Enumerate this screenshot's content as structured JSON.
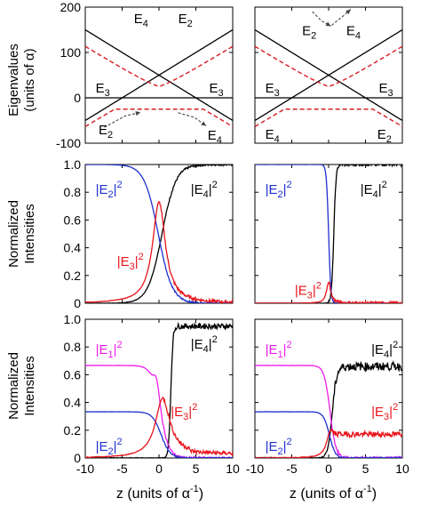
{
  "figure": {
    "xlabel_left": "z (units of α",
    "xlabel_right": "z (units of α",
    "xlabel_sup": "-1",
    "xlabel_close": ")",
    "row_labels": [
      [
        "Eigenvalues",
        "(units of α)"
      ],
      [
        "Normalized",
        "Intensities"
      ],
      [
        "Normalized",
        "Intensities"
      ]
    ]
  },
  "colors": {
    "axis": "#000000",
    "black": "#000000",
    "red": "#e8141b",
    "blue": "#1f2fd0",
    "magenta": "#ee1cee",
    "dashed_red": "#d81f26",
    "arrow": "#444444"
  },
  "chart_data": [
    {
      "id": "top-left",
      "type": "line",
      "xlim": [
        -10,
        10
      ],
      "ylim": [
        -100,
        200
      ],
      "xticks": [
        -10,
        -5,
        0,
        5,
        10
      ],
      "yticks": [
        -100,
        0,
        100,
        200
      ],
      "ytick_labels": [
        "-100",
        "0",
        "100",
        "200"
      ],
      "xtick_labels": [],
      "show_ytick_labels": true,
      "series": [
        {
          "kind": "linear",
          "slope": 10,
          "intercept": 50,
          "style": "solid",
          "color": "black"
        },
        {
          "kind": "linear",
          "slope": -10,
          "intercept": 50,
          "style": "solid",
          "color": "black"
        },
        {
          "kind": "constant",
          "value": 0,
          "style": "solid",
          "color": "black"
        },
        {
          "kind": "repel-upper",
          "style": "dashed",
          "color": "dashed_red"
        },
        {
          "kind": "repel-lower",
          "style": "dashed",
          "color": "dashed_red"
        }
      ],
      "labels": [
        {
          "t": "E",
          "s": "4",
          "x": -3.4,
          "y": 165
        },
        {
          "t": "E",
          "s": "2",
          "x": 2.6,
          "y": 165
        },
        {
          "t": "E",
          "s": "3",
          "x": -8.6,
          "y": 12
        },
        {
          "t": "E",
          "s": "3",
          "x": 6.8,
          "y": 12
        },
        {
          "t": "E",
          "s": "2",
          "x": -8.2,
          "y": -80
        },
        {
          "t": "E",
          "s": "4",
          "x": 6.6,
          "y": -92
        }
      ],
      "arrows": [
        {
          "path": [
            [
              -7.4,
              -65
            ],
            [
              -4.6,
              -40
            ],
            [
              -2.5,
              -32
            ]
          ]
        },
        {
          "path": [
            [
              2.6,
              -33
            ],
            [
              4.8,
              -43
            ],
            [
              6.4,
              -62
            ]
          ]
        }
      ]
    },
    {
      "id": "top-right",
      "type": "line",
      "xlim": [
        -10,
        10
      ],
      "ylim": [
        -100,
        200
      ],
      "xticks": [
        -10,
        -5,
        0,
        5,
        10
      ],
      "yticks": [
        -100,
        0,
        100,
        200
      ],
      "ytick_labels": [],
      "xtick_labels": [],
      "show_ytick_labels": false,
      "series": [
        {
          "kind": "linear",
          "slope": 10,
          "intercept": 50,
          "style": "solid",
          "color": "black"
        },
        {
          "kind": "linear",
          "slope": -10,
          "intercept": 50,
          "style": "solid",
          "color": "black"
        },
        {
          "kind": "constant",
          "value": 0,
          "style": "solid",
          "color": "black"
        },
        {
          "kind": "repel-upper",
          "style": "dashed",
          "color": "dashed_red"
        },
        {
          "kind": "repel-lower",
          "style": "dashed",
          "color": "dashed_red"
        }
      ],
      "labels": [
        {
          "t": "E",
          "s": "2",
          "x": -3.6,
          "y": 138
        },
        {
          "t": "E",
          "s": "4",
          "x": 2.4,
          "y": 138
        },
        {
          "t": "E",
          "s": "3",
          "x": -8.6,
          "y": 12
        },
        {
          "t": "E",
          "s": "3",
          "x": 6.8,
          "y": 12
        },
        {
          "t": "E",
          "s": "4",
          "x": -8.6,
          "y": -90
        },
        {
          "t": "E",
          "s": "2",
          "x": 6.6,
          "y": -90
        }
      ],
      "arrows": [
        {
          "path": [
            [
              -2.2,
              190
            ],
            [
              -1.0,
              170
            ],
            [
              0.3,
              158
            ]
          ]
        },
        {
          "path": [
            [
              0.4,
              160
            ],
            [
              1.8,
              178
            ],
            [
              3.0,
              195
            ]
          ]
        }
      ]
    },
    {
      "id": "mid-left",
      "type": "line",
      "xlim": [
        -10,
        10
      ],
      "ylim": [
        0,
        1.0
      ],
      "xticks": [
        -10,
        -5,
        0,
        5,
        10
      ],
      "yticks": [
        0,
        0.2,
        0.4,
        0.6,
        0.8,
        1.0
      ],
      "ytick_labels": [
        "0",
        "0.2",
        "0.4",
        "0.6",
        "0.8",
        "1.0"
      ],
      "xtick_labels": [],
      "show_ytick_labels": true,
      "series": [
        {
          "kind": "sigmoid-up",
          "x0": 0.0,
          "w": 0.95,
          "amp": 1.0,
          "color": "black",
          "noise": 0.008,
          "lag": 0.4
        },
        {
          "kind": "sigmoid-down",
          "x0": -0.1,
          "w": 0.95,
          "amp": 1.0,
          "color": "blue",
          "noise": 0.006
        },
        {
          "kind": "lorentz",
          "x0": 0.0,
          "w": 1.05,
          "amp": 0.73,
          "color": "red",
          "noise": 0.012
        }
      ],
      "labels": [
        {
          "t": "|E",
          "s": "2",
          "tail": "|",
          "sup": "2",
          "x": -8.6,
          "y": 0.79,
          "color": "blue"
        },
        {
          "t": "|E",
          "s": "4",
          "tail": "|",
          "sup": "2",
          "x": 4.3,
          "y": 0.79,
          "color": "black"
        },
        {
          "t": "|E",
          "s": "3",
          "tail": "|",
          "sup": "2",
          "x": -5.7,
          "y": 0.27,
          "color": "red"
        }
      ]
    },
    {
      "id": "mid-right",
      "type": "line",
      "xlim": [
        -10,
        10
      ],
      "ylim": [
        0,
        1.0
      ],
      "xticks": [
        -10,
        -5,
        0,
        5,
        10
      ],
      "yticks": [
        0,
        0.2,
        0.4,
        0.6,
        0.8,
        1.0
      ],
      "ytick_labels": [],
      "xtick_labels": [],
      "show_ytick_labels": false,
      "series": [
        {
          "kind": "sigmoid-up",
          "x0": 0.1,
          "w": 0.15,
          "amp": 1.0,
          "color": "black",
          "noise": 0.01,
          "lag": 0.6
        },
        {
          "kind": "sigmoid-down",
          "x0": 0.0,
          "w": 0.15,
          "amp": 1.0,
          "color": "blue",
          "noise": 0.004
        },
        {
          "kind": "lorentz",
          "x0": 0.0,
          "w": 0.35,
          "amp": 0.15,
          "color": "red",
          "noise": 0.012
        }
      ],
      "labels": [
        {
          "t": "|E",
          "s": "2",
          "tail": "|",
          "sup": "2",
          "x": -8.6,
          "y": 0.79,
          "color": "blue"
        },
        {
          "t": "|E",
          "s": "4",
          "tail": "|",
          "sup": "2",
          "x": 4.3,
          "y": 0.79,
          "color": "black"
        },
        {
          "t": "|E",
          "s": "3",
          "tail": "|",
          "sup": "2",
          "x": -4.6,
          "y": 0.06,
          "color": "red"
        }
      ]
    },
    {
      "id": "bot-left",
      "type": "line",
      "xlim": [
        -10,
        10
      ],
      "ylim": [
        0,
        1.0
      ],
      "xticks": [
        -10,
        -5,
        0,
        5,
        10
      ],
      "yticks": [
        0,
        0.2,
        0.4,
        0.6,
        0.8,
        1.0
      ],
      "ytick_labels": [
        "0",
        "0.2",
        "0.4",
        "0.6",
        "0.8",
        "1.0"
      ],
      "xtick_labels": [
        "-10",
        "-5",
        "0",
        "5",
        "10"
      ],
      "show_ytick_labels": true,
      "series": [
        {
          "kind": "step-up",
          "x0": 1.6,
          "w": 0.15,
          "amp": 0.95,
          "color": "black",
          "noise": 0.02
        },
        {
          "kind": "sigmoid-down",
          "x0": 0.2,
          "w": 0.6,
          "amp": 0.667,
          "color": "magenta",
          "noise": 0.008,
          "bump": 0.1
        },
        {
          "kind": "sigmoid-down",
          "x0": 0.3,
          "w": 0.6,
          "amp": 0.333,
          "color": "blue",
          "noise": 0.005
        },
        {
          "kind": "lorentz-floor",
          "x0": 0.5,
          "w": 1.2,
          "amp": 0.43,
          "floor": 0.03,
          "color": "red",
          "noise": 0.015
        }
      ],
      "labels": [
        {
          "t": "|E",
          "s": "1",
          "tail": "|",
          "sup": "2",
          "x": -8.6,
          "y": 0.75,
          "color": "magenta"
        },
        {
          "t": "|E",
          "s": "4",
          "tail": "|",
          "sup": "2",
          "x": 4.3,
          "y": 0.79,
          "color": "black"
        },
        {
          "t": "|E",
          "s": "3",
          "tail": "|",
          "sup": "2",
          "x": 1.6,
          "y": 0.3,
          "color": "red"
        },
        {
          "t": "|E",
          "s": "2",
          "tail": "|",
          "sup": "2",
          "x": -8.6,
          "y": 0.05,
          "color": "blue"
        }
      ]
    },
    {
      "id": "bot-right",
      "type": "line",
      "xlim": [
        -10,
        10
      ],
      "ylim": [
        0,
        1.0
      ],
      "xticks": [
        -10,
        -5,
        0,
        5,
        10
      ],
      "yticks": [
        0,
        0.2,
        0.4,
        0.6,
        0.8,
        1.0
      ],
      "ytick_labels": [],
      "xtick_labels": [
        "-10",
        "-5",
        "0",
        "5",
        "10"
      ],
      "show_ytick_labels": false,
      "series": [
        {
          "kind": "step-up",
          "x0": 0.5,
          "w": 0.3,
          "amp": 0.66,
          "color": "black",
          "noise": 0.03
        },
        {
          "kind": "sigmoid-down",
          "x0": 0.2,
          "w": 0.4,
          "amp": 0.667,
          "color": "magenta",
          "noise": 0.01
        },
        {
          "kind": "sigmoid-down",
          "x0": 0.1,
          "w": 0.4,
          "amp": 0.333,
          "color": "blue",
          "noise": 0.006
        },
        {
          "kind": "lorentz-floor",
          "x0": 0.3,
          "w": 0.6,
          "amp": 0.2,
          "floor": 0.17,
          "color": "red",
          "noise": 0.02
        }
      ],
      "labels": [
        {
          "t": "|E",
          "s": "1",
          "tail": "|",
          "sup": "2",
          "x": -8.6,
          "y": 0.75,
          "color": "magenta"
        },
        {
          "t": "|E",
          "s": "4",
          "tail": "|",
          "sup": "2",
          "x": 5.8,
          "y": 0.75,
          "color": "black"
        },
        {
          "t": "|E",
          "s": "3",
          "tail": "|",
          "sup": "2",
          "x": 5.8,
          "y": 0.3,
          "color": "red"
        },
        {
          "t": "|E",
          "s": "2",
          "tail": "|",
          "sup": "2",
          "x": -8.6,
          "y": 0.05,
          "color": "blue"
        }
      ]
    }
  ]
}
